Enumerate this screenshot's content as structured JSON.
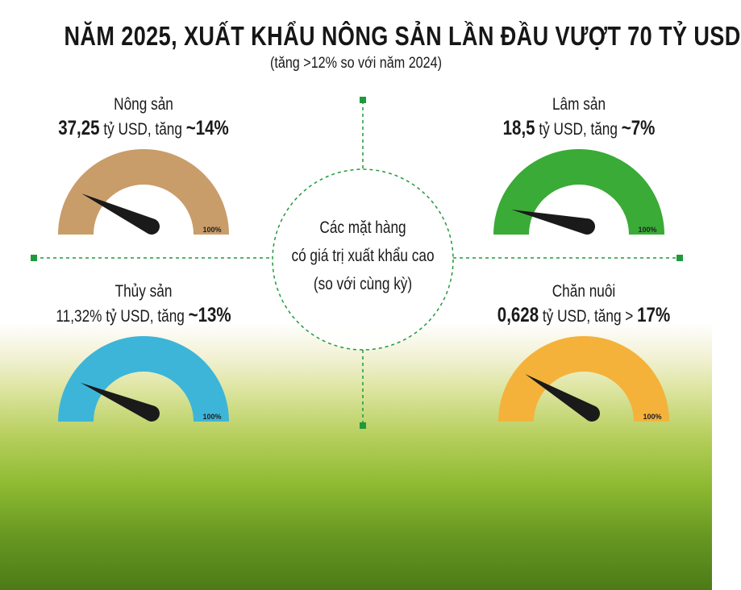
{
  "title": "NĂM 2025, XUẤT KHẨU NÔNG SẢN LẦN ĐẦU VƯỢT 70 TỶ USD",
  "subtitle": "(tăng >12% so với năm 2024)",
  "center": {
    "line1": "Các mặt hàng",
    "line2": "có giá trị xuất khẩu cao",
    "line3": "(so với cùng kỳ)"
  },
  "colors": {
    "connector": "#1e9a3c",
    "needle": "#1a1a1a"
  },
  "gauge_max_label": "100%",
  "items": [
    {
      "name": "Nông sản",
      "value": "37,25",
      "unit_text": " tỷ USD, tăng ",
      "growth_prefix": "~",
      "growth": "14%",
      "growth_value": 14,
      "color": "#c99d6a"
    },
    {
      "name": "Lâm sản",
      "value": "18,5",
      "unit_text": " tỷ USD, tăng ",
      "growth_prefix": "~",
      "growth": "7%",
      "growth_value": 7,
      "color": "#3aab36"
    },
    {
      "name": "Thủy sản",
      "value": "11,32%",
      "unit_text": " tỷ USD, tăng ",
      "growth_prefix": "~",
      "growth": "13%",
      "growth_value": 13,
      "color": "#3db5d8"
    },
    {
      "name": "Chăn nuôi",
      "value": "0,628",
      "unit_text": " tỷ USD, tăng > ",
      "growth_prefix": "",
      "growth": "17%",
      "growth_value": 17,
      "color": "#f4b23b"
    }
  ]
}
